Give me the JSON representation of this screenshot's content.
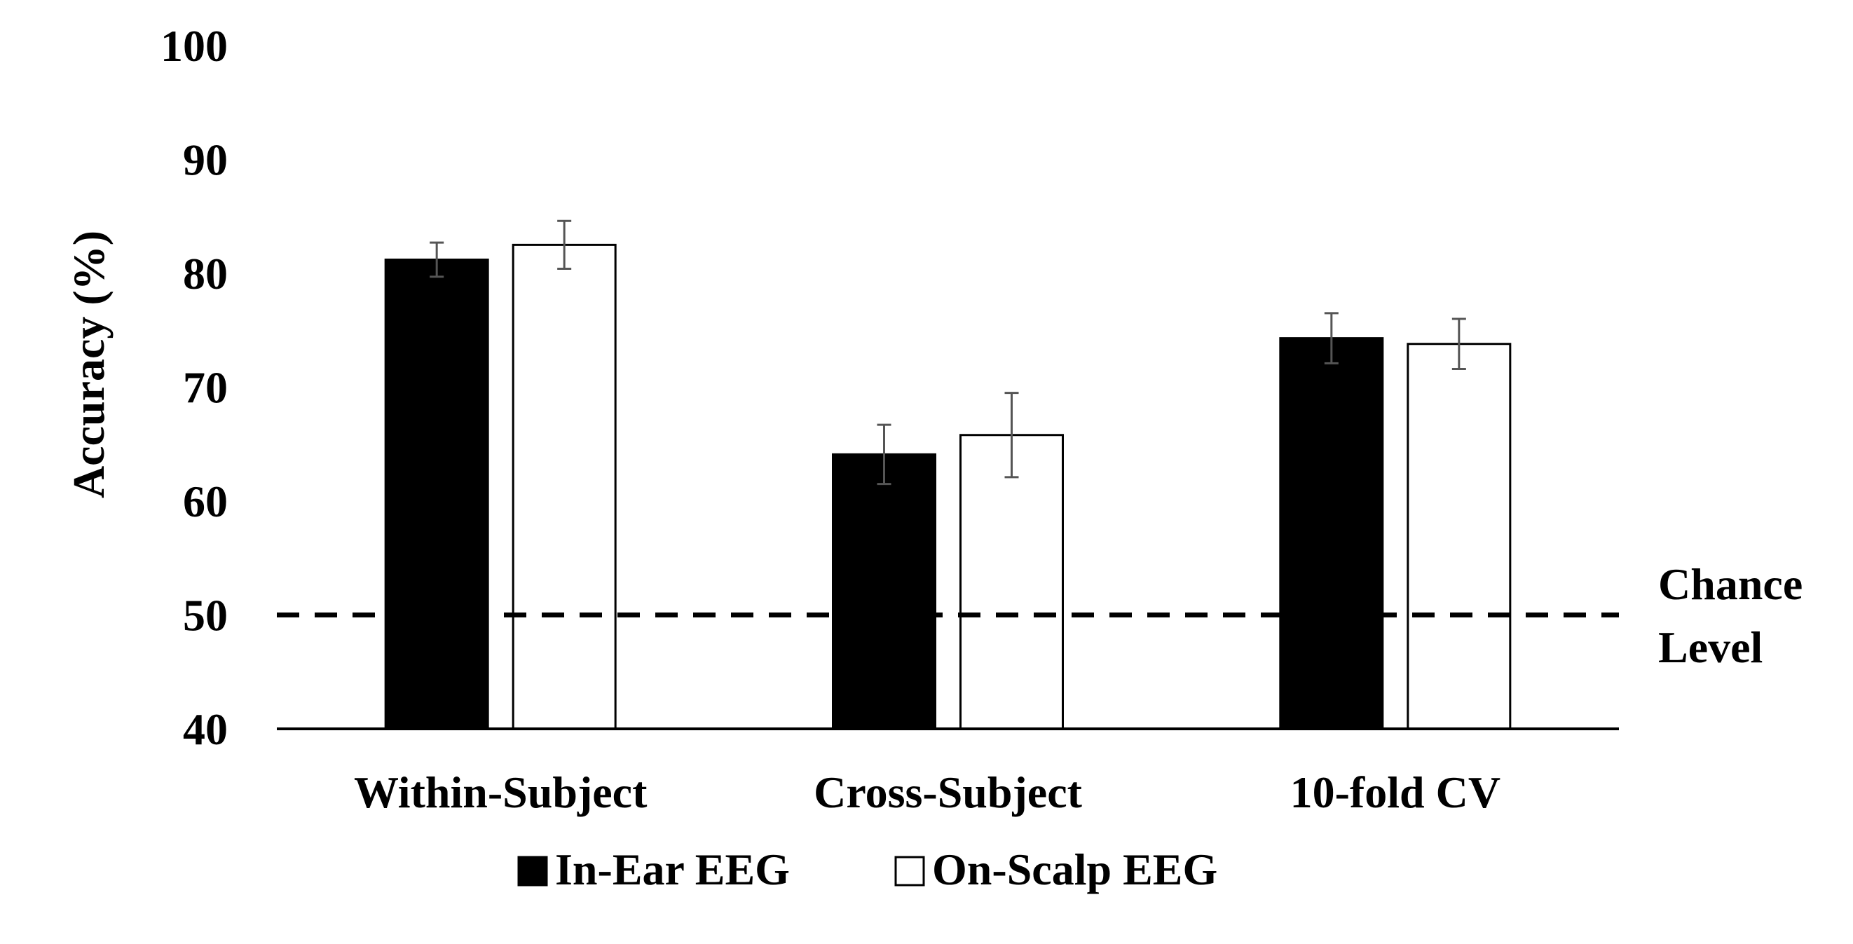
{
  "chart_data": {
    "type": "bar",
    "title": "",
    "xlabel": "",
    "ylabel": "Accuracy (%)",
    "ylim": [
      40,
      100
    ],
    "yticks": [
      40,
      50,
      60,
      70,
      80,
      90,
      100
    ],
    "ytick_labels": [
      "40",
      "50",
      "60",
      "70",
      "80",
      "90",
      "100"
    ],
    "grid": false,
    "categories": [
      "Within-Subject",
      "Cross-Subject",
      "10-fold CV"
    ],
    "series": [
      {
        "name": "In-Ear EEG",
        "color": "#000000",
        "values": [
          81.2,
          64.1,
          74.3
        ],
        "errors": [
          1.5,
          2.6,
          2.2
        ]
      },
      {
        "name": "On-Scalp EEG",
        "color": "#ffffff",
        "values": [
          82.5,
          65.8,
          73.8
        ],
        "errors": [
          2.1,
          3.7,
          2.2
        ]
      }
    ],
    "reference_line": {
      "value": 50,
      "label_line1": "Chance",
      "label_line2": "Level",
      "style": "dashed"
    },
    "legend_position": "bottom-center"
  }
}
